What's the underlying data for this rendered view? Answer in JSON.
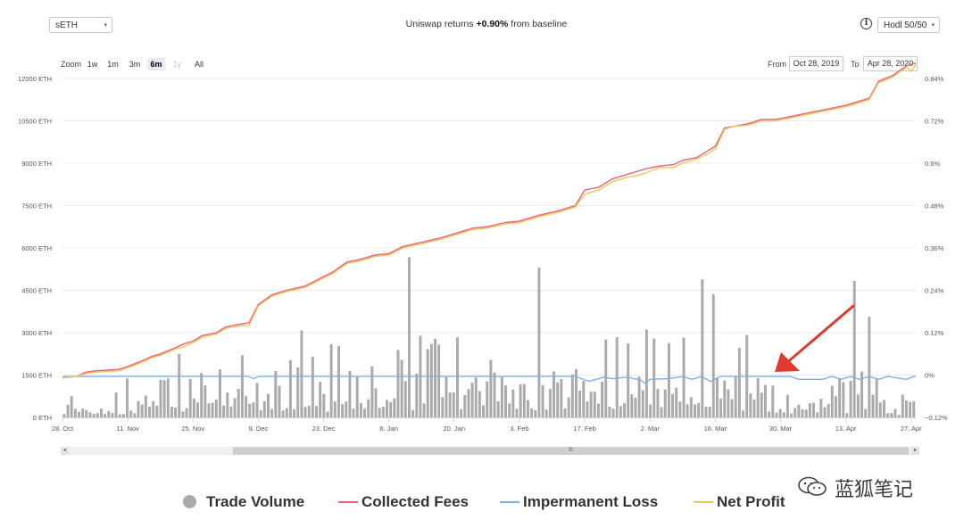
{
  "controls": {
    "pool_select": "sETH",
    "headline_prefix": "Uniswap returns ",
    "headline_value": "+0.90%",
    "headline_suffix": " from baseline",
    "strategy_select": "Hodl 50/50",
    "info_icon": "i",
    "zoom_label": "Zoom",
    "zoom_buttons": [
      "1w",
      "1m",
      "3m",
      "6m",
      "1y",
      "All"
    ],
    "zoom_active": "6m",
    "zoom_disabled": [
      "1y"
    ],
    "from_label": "From",
    "from_date": "Oct 28, 2019",
    "to_label": "To",
    "to_date": "Apr 28, 2020",
    "scroll_left": "◂",
    "scroll_right": "▸",
    "scroll_grip": "III"
  },
  "watermark": "蓝狐笔记",
  "chart_data": {
    "type": "line",
    "x_tick_labels": [
      "28. Oct",
      "11. Nov",
      "25. Nov",
      "9. Dec",
      "23. Dec",
      "6. Jan",
      "20. Jan",
      "3. Feb",
      "17. Feb",
      "2. Mar",
      "16. Mar",
      "30. Mar",
      "13. Apr",
      "27. Apr"
    ],
    "x_tick_days": [
      0,
      14,
      28,
      42,
      56,
      70,
      84,
      98,
      112,
      126,
      140,
      154,
      168,
      182
    ],
    "x_range_days": [
      0,
      183
    ],
    "y_left": {
      "unit": "ETH",
      "ticks": [
        "0 ETH",
        "1500 ETH",
        "3000 ETH",
        "4500 ETH",
        "6000 ETH",
        "7500 ETH",
        "9000 ETH",
        "10500 ETH",
        "12000 ETH"
      ],
      "range": [
        0,
        12000
      ]
    },
    "y_right": {
      "ticks": [
        "−0.12%",
        "0%",
        "0.12%",
        "0.24%",
        "0.36%",
        "0.48%",
        "0.6%",
        "0.72%",
        "0.84%"
      ],
      "range": [
        -0.12,
        0.84
      ]
    },
    "grid": true,
    "legend_position": "bottom",
    "series": [
      {
        "name": "Trade Volume",
        "type": "bar",
        "axis": "left",
        "color": "#aaaaaa",
        "values": [
          120,
          450,
          750,
          300,
          200,
          310,
          260,
          180,
          120,
          150,
          310,
          120,
          230,
          160,
          880,
          110,
          120,
          1380,
          240,
          150,
          580,
          460,
          770,
          380,
          570,
          410,
          1330,
          1320,
          1380,
          380,
          350,
          2250,
          210,
          330,
          1360,
          670,
          530,
          1570,
          1130,
          500,
          520,
          630,
          1700,
          420,
          880,
          390,
          680,
          1010,
          2200,
          750,
          480,
          530,
          1220,
          260,
          580,
          830,
          300,
          1640,
          1120,
          240,
          330,
          2030,
          290,
          1770,
          3080,
          370,
          410,
          2150,
          410,
          1260,
          830,
          200,
          2600,
          560,
          2530,
          470,
          560,
          1640,
          310,
          1430,
          510,
          310,
          640,
          1810,
          1030,
          340,
          380,
          620,
          540,
          670,
          2390,
          2040,
          1290,
          5670,
          260,
          1550,
          2890,
          490,
          2420,
          2600,
          2790,
          2580,
          720,
          1430,
          880,
          880,
          2840,
          290,
          790,
          1000,
          1230,
          1410,
          930,
          430,
          1280,
          2040,
          1590,
          570,
          1430,
          1130,
          490,
          990,
          310,
          1180,
          1180,
          610,
          320,
          260,
          5300,
          1150,
          280,
          1000,
          1630,
          1240,
          1360,
          320,
          710,
          1520,
          1710,
          950,
          1290,
          560,
          910,
          910,
          490,
          1260,
          2760,
          380,
          310,
          2840,
          400,
          500,
          2620,
          820,
          700,
          1450,
          960,
          3110,
          460,
          2790,
          1010,
          360,
          990,
          2630,
          830,
          1050,
          560,
          2820,
          460,
          720,
          460,
          510,
          4890,
          380,
          380,
          4360,
          1390,
          670,
          1310,
          990,
          650,
          1470,
          2460,
          240,
          2920,
          850,
          630,
          1390,
          870,
          1150,
          210,
          1130,
          170,
          300,
          180,
          800,
          140,
          330,
          450,
          290,
          280,
          500,
          520,
          180,
          660,
          360,
          480,
          1120,
          750,
          1400,
          1250,
          150,
          1300,
          4830,
          810,
          1620,
          300,
          3560,
          800,
          1340,
          530,
          620,
          150,
          160,
          300,
          90,
          810,
          600,
          550,
          570
        ]
      },
      {
        "name": "Collected Fees",
        "type": "line",
        "axis": "left",
        "color": "#e8607a",
        "points": [
          [
            0,
            1400
          ],
          [
            3,
            1450
          ],
          [
            5,
            1600
          ],
          [
            7,
            1650
          ],
          [
            12,
            1700
          ],
          [
            14,
            1800
          ],
          [
            17,
            2000
          ],
          [
            19,
            2150
          ],
          [
            21,
            2250
          ],
          [
            24,
            2450
          ],
          [
            26,
            2600
          ],
          [
            28,
            2700
          ],
          [
            30,
            2900
          ],
          [
            33,
            3000
          ],
          [
            35,
            3200
          ],
          [
            38,
            3300
          ],
          [
            40,
            3350
          ],
          [
            42,
            4000
          ],
          [
            45,
            4350
          ],
          [
            48,
            4500
          ],
          [
            52,
            4650
          ],
          [
            55,
            4900
          ],
          [
            58,
            5150
          ],
          [
            61,
            5500
          ],
          [
            64,
            5600
          ],
          [
            67,
            5750
          ],
          [
            70,
            5800
          ],
          [
            73,
            6050
          ],
          [
            77,
            6200
          ],
          [
            81,
            6350
          ],
          [
            85,
            6550
          ],
          [
            88,
            6700
          ],
          [
            91,
            6750
          ],
          [
            95,
            6900
          ],
          [
            98,
            6950
          ],
          [
            102,
            7150
          ],
          [
            106,
            7300
          ],
          [
            110,
            7500
          ],
          [
            112,
            8050
          ],
          [
            115,
            8150
          ],
          [
            118,
            8450
          ],
          [
            121,
            8600
          ],
          [
            123,
            8700
          ],
          [
            125,
            8800
          ],
          [
            128,
            8900
          ],
          [
            131,
            8950
          ],
          [
            133,
            9100
          ],
          [
            136,
            9200
          ],
          [
            138,
            9400
          ],
          [
            140,
            9600
          ],
          [
            142,
            10250
          ],
          [
            144,
            10300
          ],
          [
            147,
            10400
          ],
          [
            150,
            10550
          ],
          [
            153,
            10550
          ],
          [
            156,
            10650
          ],
          [
            159,
            10750
          ],
          [
            162,
            10850
          ],
          [
            165,
            10950
          ],
          [
            168,
            11050
          ],
          [
            171,
            11200
          ],
          [
            173,
            11300
          ],
          [
            175,
            11900
          ],
          [
            178,
            12100
          ],
          [
            181,
            12450
          ],
          [
            183,
            12550
          ]
        ]
      },
      {
        "name": "Impermanent Loss",
        "type": "line",
        "axis": "right",
        "color": "#7fb0e6",
        "points": [
          [
            0,
            -0.004
          ],
          [
            20,
            -0.004
          ],
          [
            40,
            -0.004
          ],
          [
            41,
            -0.01
          ],
          [
            42,
            -0.004
          ],
          [
            70,
            -0.004
          ],
          [
            95,
            -0.004
          ],
          [
            105,
            -0.004
          ],
          [
            110,
            -0.004
          ],
          [
            113,
            -0.018
          ],
          [
            116,
            -0.006
          ],
          [
            118,
            -0.01
          ],
          [
            121,
            -0.006
          ],
          [
            124,
            -0.014
          ],
          [
            125,
            -0.024
          ],
          [
            126,
            -0.012
          ],
          [
            130,
            -0.01
          ],
          [
            133,
            -0.004
          ],
          [
            135,
            -0.012
          ],
          [
            137,
            -0.004
          ],
          [
            139,
            -0.018
          ],
          [
            141,
            -0.004
          ],
          [
            145,
            -0.004
          ],
          [
            152,
            -0.004
          ],
          [
            156,
            -0.004
          ],
          [
            158,
            -0.012
          ],
          [
            163,
            -0.012
          ],
          [
            165,
            -0.004
          ],
          [
            167,
            -0.012
          ],
          [
            169,
            -0.004
          ],
          [
            171,
            -0.012
          ],
          [
            173,
            -0.004
          ],
          [
            175,
            -0.012
          ],
          [
            177,
            -0.004
          ],
          [
            179,
            -0.008
          ],
          [
            181,
            -0.012
          ],
          [
            183,
            -0.002
          ]
        ]
      },
      {
        "name": "Net Profit",
        "type": "line",
        "axis": "left",
        "color": "#e8c75e",
        "points": [
          [
            0,
            1400
          ],
          [
            3,
            1450
          ],
          [
            5,
            1550
          ],
          [
            7,
            1600
          ],
          [
            12,
            1650
          ],
          [
            14,
            1750
          ],
          [
            17,
            1950
          ],
          [
            19,
            2100
          ],
          [
            21,
            2200
          ],
          [
            24,
            2400
          ],
          [
            26,
            2500
          ],
          [
            28,
            2650
          ],
          [
            30,
            2850
          ],
          [
            33,
            2950
          ],
          [
            35,
            3150
          ],
          [
            38,
            3250
          ],
          [
            40,
            3250
          ],
          [
            42,
            3950
          ],
          [
            45,
            4300
          ],
          [
            48,
            4450
          ],
          [
            52,
            4600
          ],
          [
            55,
            4850
          ],
          [
            58,
            5100
          ],
          [
            61,
            5450
          ],
          [
            64,
            5550
          ],
          [
            67,
            5700
          ],
          [
            70,
            5750
          ],
          [
            73,
            6000
          ],
          [
            77,
            6150
          ],
          [
            81,
            6300
          ],
          [
            85,
            6500
          ],
          [
            88,
            6650
          ],
          [
            91,
            6700
          ],
          [
            95,
            6850
          ],
          [
            98,
            6900
          ],
          [
            102,
            7100
          ],
          [
            106,
            7250
          ],
          [
            110,
            7450
          ],
          [
            112,
            7900
          ],
          [
            115,
            8050
          ],
          [
            118,
            8350
          ],
          [
            121,
            8500
          ],
          [
            123,
            8550
          ],
          [
            125,
            8650
          ],
          [
            128,
            8850
          ],
          [
            131,
            8850
          ],
          [
            133,
            9000
          ],
          [
            136,
            9150
          ],
          [
            138,
            9300
          ],
          [
            140,
            9500
          ],
          [
            142,
            10200
          ],
          [
            144,
            10300
          ],
          [
            147,
            10350
          ],
          [
            150,
            10500
          ],
          [
            153,
            10500
          ],
          [
            156,
            10600
          ],
          [
            159,
            10700
          ],
          [
            162,
            10800
          ],
          [
            165,
            10900
          ],
          [
            168,
            11000
          ],
          [
            171,
            11150
          ],
          [
            173,
            11250
          ],
          [
            175,
            11850
          ],
          [
            178,
            12050
          ],
          [
            181,
            12400
          ],
          [
            182,
            12250
          ],
          [
            183,
            12500
          ]
        ]
      }
    ],
    "annotation": {
      "type": "arrow",
      "color": "#e03a2e",
      "points_to": "Impermanent Loss"
    }
  }
}
